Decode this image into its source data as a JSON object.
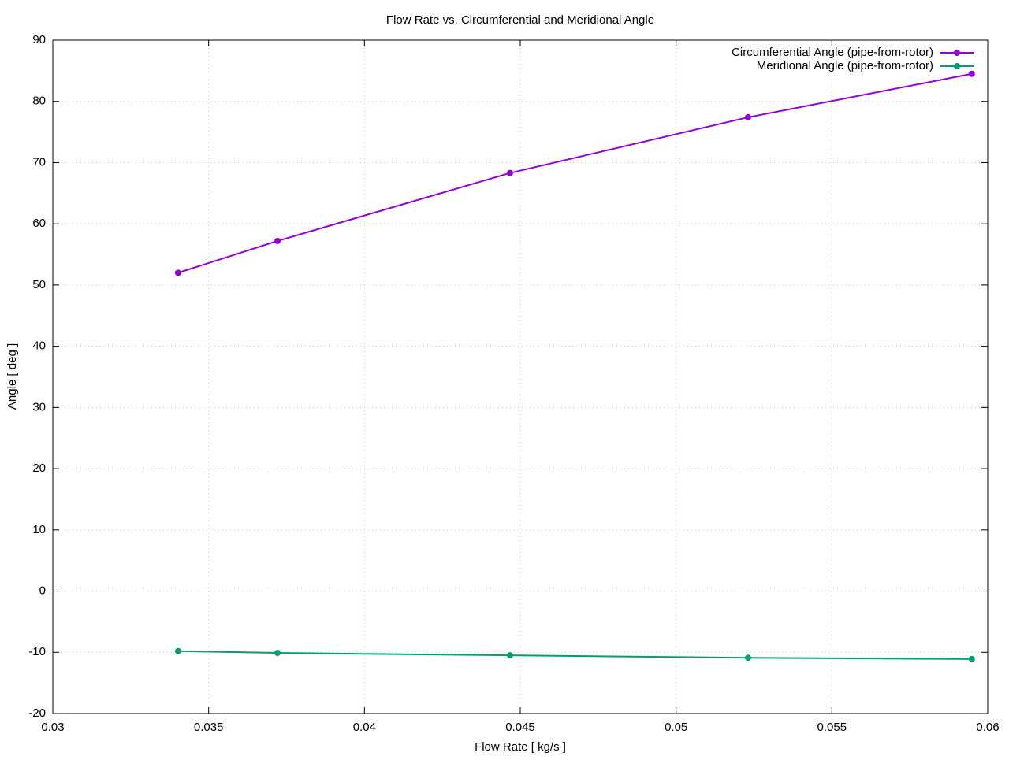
{
  "chart_data": {
    "type": "line",
    "title": "Flow Rate vs. Circumferential and Meridional Angle",
    "x_label": "Flow Rate [ kg/s ]",
    "y_label": "Angle [ deg ]",
    "x": [
      0.03402,
      0.03721,
      0.04467,
      0.05231,
      0.05949
    ],
    "series": [
      {
        "name": "Circumferential Angle (pipe-from-rotor)",
        "color": "#9400d3",
        "values": [
          52.0,
          57.2,
          68.3,
          77.4,
          84.5
        ]
      },
      {
        "name": "Meridional Angle (pipe-from-rotor)",
        "color": "#009e73",
        "values": [
          -9.8,
          -10.1,
          -10.5,
          -10.9,
          -11.1
        ]
      }
    ],
    "xlim": [
      0.03,
      0.06
    ],
    "xticks": [
      0.03,
      0.035,
      0.04,
      0.045,
      0.05,
      0.055,
      0.06
    ],
    "ylim": [
      -20,
      90
    ],
    "yticks": [
      -20,
      -10,
      0,
      10,
      20,
      30,
      40,
      50,
      60,
      70,
      80,
      90
    ],
    "grid": true,
    "legend": "top-right"
  }
}
